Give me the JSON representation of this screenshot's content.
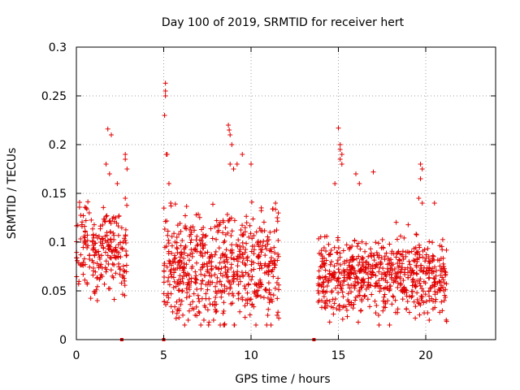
{
  "chart_data": {
    "type": "scatter",
    "title": "Day 100 of 2019, SRMTID for receiver hert",
    "xlabel": "GPS time / hours",
    "ylabel": "SRMTID / TECUs",
    "xlim": [
      0,
      24
    ],
    "ylim": [
      0,
      0.3
    ],
    "xticks": [
      0,
      5,
      10,
      15,
      20
    ],
    "xtick_labels": [
      "0",
      "5",
      "10",
      "15",
      "20"
    ],
    "yticks": [
      0,
      0.05,
      0.1,
      0.15,
      0.2,
      0.25,
      0.3
    ],
    "ytick_labels": [
      "0",
      "0.05",
      "0.1",
      "0.15",
      "0.2",
      "0.25",
      "0.3"
    ],
    "grid": true,
    "marker": "plus",
    "color": "#e00000",
    "series": [
      {
        "name": "SRMTID",
        "clusters": [
          {
            "x_range": [
              0.0,
              2.9
            ],
            "count": 230,
            "y_center": 0.095,
            "y_spread": 0.03
          },
          {
            "x_range": [
              5.0,
              11.6
            ],
            "count": 600,
            "y_center": 0.075,
            "y_spread": 0.035
          },
          {
            "x_range": [
              13.8,
              21.2
            ],
            "count": 650,
            "y_center": 0.065,
            "y_spread": 0.025
          }
        ],
        "peaks": [
          {
            "x": 1.8,
            "y": 0.216
          },
          {
            "x": 2.0,
            "y": 0.21
          },
          {
            "x": 1.7,
            "y": 0.18
          },
          {
            "x": 1.9,
            "y": 0.17
          },
          {
            "x": 2.8,
            "y": 0.19
          },
          {
            "x": 2.8,
            "y": 0.185
          },
          {
            "x": 2.9,
            "y": 0.175
          },
          {
            "x": 2.8,
            "y": 0.145
          },
          {
            "x": 5.1,
            "y": 0.263
          },
          {
            "x": 5.1,
            "y": 0.255
          },
          {
            "x": 5.1,
            "y": 0.25
          },
          {
            "x": 5.05,
            "y": 0.23
          },
          {
            "x": 5.15,
            "y": 0.19
          },
          {
            "x": 5.2,
            "y": 0.19
          },
          {
            "x": 5.3,
            "y": 0.16
          },
          {
            "x": 5.4,
            "y": 0.14
          },
          {
            "x": 8.7,
            "y": 0.22
          },
          {
            "x": 8.75,
            "y": 0.215
          },
          {
            "x": 8.8,
            "y": 0.21
          },
          {
            "x": 8.9,
            "y": 0.2
          },
          {
            "x": 8.8,
            "y": 0.18
          },
          {
            "x": 9.0,
            "y": 0.175
          },
          {
            "x": 9.2,
            "y": 0.18
          },
          {
            "x": 9.5,
            "y": 0.19
          },
          {
            "x": 10.0,
            "y": 0.18
          },
          {
            "x": 11.4,
            "y": 0.14
          },
          {
            "x": 11.5,
            "y": 0.125
          },
          {
            "x": 15.0,
            "y": 0.217
          },
          {
            "x": 15.1,
            "y": 0.2
          },
          {
            "x": 15.1,
            "y": 0.195
          },
          {
            "x": 15.2,
            "y": 0.19
          },
          {
            "x": 15.1,
            "y": 0.185
          },
          {
            "x": 15.2,
            "y": 0.18
          },
          {
            "x": 14.8,
            "y": 0.16
          },
          {
            "x": 16.0,
            "y": 0.17
          },
          {
            "x": 16.2,
            "y": 0.16
          },
          {
            "x": 17.0,
            "y": 0.172
          },
          {
            "x": 19.7,
            "y": 0.18
          },
          {
            "x": 19.8,
            "y": 0.175
          },
          {
            "x": 19.7,
            "y": 0.165
          },
          {
            "x": 19.6,
            "y": 0.145
          },
          {
            "x": 19.8,
            "y": 0.14
          },
          {
            "x": 20.5,
            "y": 0.14
          }
        ],
        "low_points": [
          {
            "x": 1.2,
            "y": 0.04
          },
          {
            "x": 6.2,
            "y": 0.015
          },
          {
            "x": 6.4,
            "y": 0.02
          },
          {
            "x": 6.8,
            "y": 0.025
          },
          {
            "x": 7.3,
            "y": 0.02
          },
          {
            "x": 8.4,
            "y": 0.027
          },
          {
            "x": 14.5,
            "y": 0.018
          },
          {
            "x": 17.3,
            "y": 0.025
          },
          {
            "x": 19.4,
            "y": 0.022
          },
          {
            "x": 20.2,
            "y": 0.02
          },
          {
            "x": 20.8,
            "y": 0.028
          }
        ],
        "zero_markers": [
          {
            "x": 2.6,
            "y": 0
          },
          {
            "x": 5.0,
            "y": 0
          },
          {
            "x": 13.6,
            "y": 0
          }
        ]
      }
    ]
  }
}
